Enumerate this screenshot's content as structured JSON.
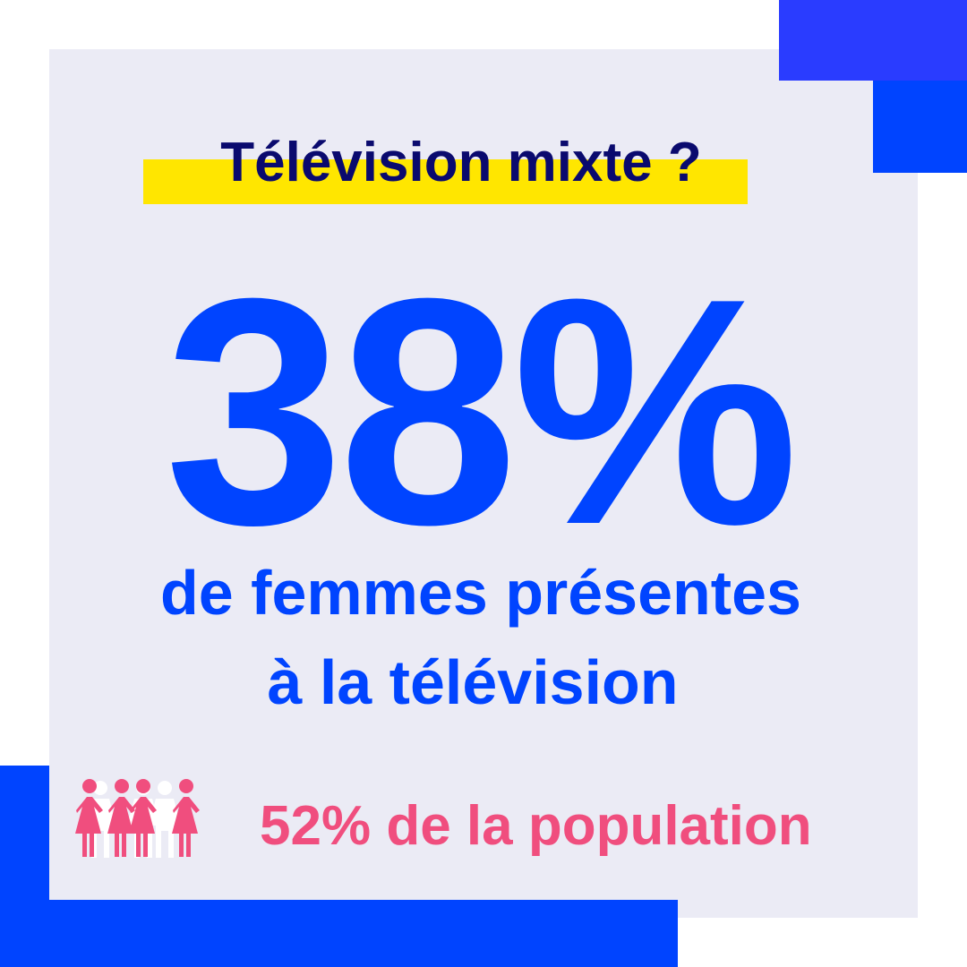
{
  "title": "Télévision mixte ?",
  "stat": "38%",
  "description": [
    "de femmes présentes",
    "à la télévision"
  ],
  "footnote": "52% de la population"
}
